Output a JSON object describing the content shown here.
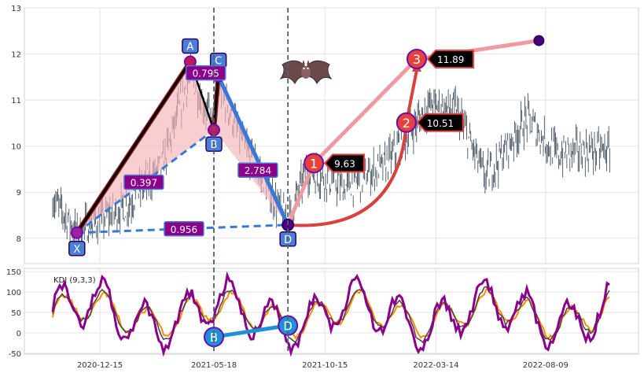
{
  "chart_data": {
    "type": "line",
    "subtype": "candlestick with XABCD bat harmonic pattern and KDJ indicator",
    "price_panel": {
      "ylim": [
        7.45,
        13.0
      ],
      "yticks": [
        "8",
        "9",
        "10",
        "11",
        "12",
        "13"
      ],
      "grid": true
    },
    "x_ticks": [
      "2020-12-15",
      "2021-05-18",
      "2021-10-15",
      "2022-03-14",
      "2022-08-09"
    ],
    "pattern_points": [
      {
        "label": "X",
        "date": "2020-11-14",
        "price": 8.12
      },
      {
        "label": "A",
        "date": "2021-04-16",
        "price": 11.83
      },
      {
        "label": "B",
        "date": "2021-05-18",
        "price": 10.35
      },
      {
        "label": "C",
        "date": "2021-05-24",
        "price": 11.52
      },
      {
        "label": "D",
        "date": "2021-08-26",
        "price": 8.29
      }
    ],
    "ratios": [
      {
        "text": "0.397"
      },
      {
        "text": "0.795"
      },
      {
        "text": "2.784"
      },
      {
        "text": "0.956"
      }
    ],
    "targets": [
      {
        "label": "1",
        "value": "9.63",
        "date": "2021-09-30",
        "price": 9.63
      },
      {
        "label": "2",
        "value": "10.51",
        "date": "2022-02-02",
        "price": 10.51
      },
      {
        "label": "3",
        "value": "11.89",
        "date": "2022-02-16",
        "price": 11.89
      }
    ],
    "end_point": {
      "date": "2022-07-31",
      "price": 12.29
    },
    "vlines": [
      "2021-05-18",
      "2021-08-26"
    ],
    "kdj_panel": {
      "label": "KDJ (9,3,3)",
      "ylim": [
        -52,
        158
      ],
      "yticks": [
        "-50",
        "0",
        "50",
        "100",
        "150"
      ],
      "markers": [
        {
          "label": "B",
          "date": "2021-05-18",
          "value": -10
        },
        {
          "label": "D",
          "date": "2021-08-26",
          "value": 18
        }
      ],
      "series": [
        {
          "color": "#ff8c00"
        },
        {
          "color": "#444444"
        },
        {
          "color": "#8b008b"
        }
      ]
    }
  }
}
